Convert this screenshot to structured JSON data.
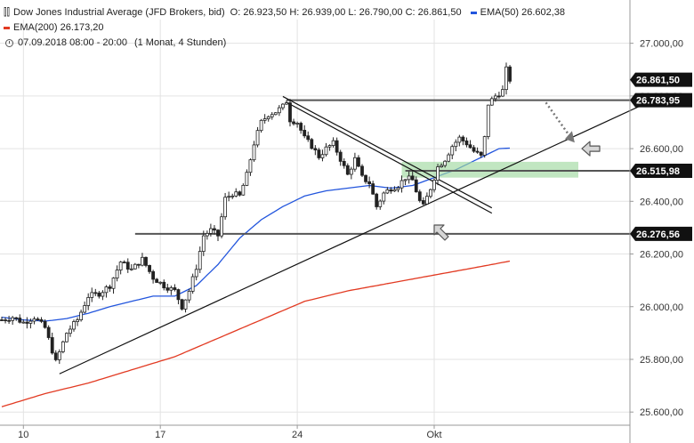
{
  "legend": {
    "instrument": "Dow Jones Industrial Average (JFD Brokers, bid)",
    "ohlc": "O: 26.923,50   H: 26.939,00   L: 26.790,00   C: 26.861,50",
    "ema50_label": "EMA(50)",
    "ema50_value": "26.602,38",
    "ema200_label": "EMA(200)",
    "ema200_value": "26.173,20",
    "date_range": "07.09.2018 08:00 - 20:00",
    "interval": "(1 Monat, 4 Stunden)"
  },
  "colors": {
    "candle": "#222222",
    "ema50": "#2255dd",
    "ema200": "#e23a22",
    "trendline": "#111111",
    "level_line": "#555555",
    "zone": "#9fd8a0",
    "price_tag_bg": "#111111",
    "price_tag_text": "#ffffff"
  },
  "chart_data": {
    "type": "candlestick",
    "ylim": [
      25550,
      27090
    ],
    "ytick_values": [
      25600,
      25800,
      26000,
      26200,
      26400,
      26600,
      26800,
      27000
    ],
    "ytick_labels": [
      "25.600,00",
      "25.800,00",
      "26.000,00",
      "26.200,00",
      "26.400,00",
      "26.600,00",
      "26.800,00",
      "27.000,00"
    ],
    "xtick_labels": [
      "10",
      "17",
      "24",
      "Okt"
    ],
    "xtick_bars": [
      6,
      44,
      82,
      120
    ],
    "bar_count": 142,
    "close_anchors": [
      [
        0,
        25950
      ],
      [
        3,
        25960
      ],
      [
        6,
        25940
      ],
      [
        9,
        25960
      ],
      [
        12,
        25920
      ],
      [
        15,
        25790
      ],
      [
        18,
        25900
      ],
      [
        21,
        25950
      ],
      [
        24,
        26040
      ],
      [
        27,
        26050
      ],
      [
        30,
        26080
      ],
      [
        33,
        26170
      ],
      [
        36,
        26140
      ],
      [
        39,
        26180
      ],
      [
        42,
        26110
      ],
      [
        45,
        26080
      ],
      [
        48,
        26060
      ],
      [
        50,
        26000
      ],
      [
        52,
        26060
      ],
      [
        54,
        26150
      ],
      [
        56,
        26270
      ],
      [
        58,
        26290
      ],
      [
        60,
        26270
      ],
      [
        62,
        26410
      ],
      [
        64,
        26430
      ],
      [
        66,
        26420
      ],
      [
        68,
        26500
      ],
      [
        70,
        26620
      ],
      [
        72,
        26700
      ],
      [
        74,
        26730
      ],
      [
        76,
        26740
      ],
      [
        78,
        26760
      ],
      [
        79,
        26780
      ],
      [
        80,
        26710
      ],
      [
        82,
        26700
      ],
      [
        84,
        26640
      ],
      [
        86,
        26610
      ],
      [
        88,
        26570
      ],
      [
        90,
        26600
      ],
      [
        92,
        26620
      ],
      [
        94,
        26560
      ],
      [
        96,
        26500
      ],
      [
        98,
        26560
      ],
      [
        100,
        26490
      ],
      [
        102,
        26470
      ],
      [
        104,
        26380
      ],
      [
        106,
        26430
      ],
      [
        108,
        26450
      ],
      [
        110,
        26460
      ],
      [
        112,
        26490
      ],
      [
        114,
        26480
      ],
      [
        116,
        26400
      ],
      [
        117,
        26380
      ],
      [
        119,
        26450
      ],
      [
        121,
        26530
      ],
      [
        123,
        26560
      ],
      [
        125,
        26610
      ],
      [
        127,
        26640
      ],
      [
        129,
        26620
      ],
      [
        131,
        26590
      ],
      [
        133,
        26570
      ],
      [
        134,
        26640
      ],
      [
        135,
        26770
      ],
      [
        137,
        26800
      ],
      [
        139,
        26820
      ],
      [
        140,
        26900
      ],
      [
        141,
        26862
      ]
    ],
    "ema50_anchors": [
      [
        0,
        25960
      ],
      [
        6,
        25950
      ],
      [
        12,
        25945
      ],
      [
        18,
        25955
      ],
      [
        24,
        25975
      ],
      [
        30,
        26000
      ],
      [
        36,
        26020
      ],
      [
        42,
        26040
      ],
      [
        48,
        26040
      ],
      [
        54,
        26080
      ],
      [
        60,
        26160
      ],
      [
        66,
        26260
      ],
      [
        72,
        26330
      ],
      [
        78,
        26380
      ],
      [
        84,
        26420
      ],
      [
        90,
        26440
      ],
      [
        96,
        26450
      ],
      [
        102,
        26460
      ],
      [
        108,
        26450
      ],
      [
        114,
        26460
      ],
      [
        120,
        26490
      ],
      [
        126,
        26520
      ],
      [
        132,
        26560
      ],
      [
        138,
        26600
      ],
      [
        141,
        26602
      ]
    ],
    "ema200_anchors": [
      [
        0,
        25620
      ],
      [
        12,
        25670
      ],
      [
        24,
        25710
      ],
      [
        36,
        25760
      ],
      [
        48,
        25810
      ],
      [
        60,
        25880
      ],
      [
        72,
        25950
      ],
      [
        84,
        26020
      ],
      [
        96,
        26060
      ],
      [
        108,
        26090
      ],
      [
        120,
        26120
      ],
      [
        132,
        26150
      ],
      [
        141,
        26173
      ]
    ],
    "horizontal_levels": [
      {
        "value": 26783.95,
        "label": "26.783,95",
        "bars": [
          79,
          180
        ]
      },
      {
        "value": 26515.98,
        "label": "26.515,98",
        "bars": [
          112,
          180
        ]
      },
      {
        "value": 26276.56,
        "label": "26.276,56",
        "bars": [
          37,
          180
        ]
      }
    ],
    "last_price": {
      "value": 26861.5,
      "label": "26.861,50"
    },
    "green_zone": {
      "bars": [
        111,
        160
      ],
      "range": [
        26490,
        26550
      ]
    },
    "trendlines": [
      {
        "from": [
          16,
          25745
        ],
        "to": [
          180,
          26780
        ]
      },
      {
        "from": [
          78,
          26798
        ],
        "to": [
          136,
          26375
        ]
      },
      {
        "from": [
          79,
          26776
        ],
        "to": [
          136,
          26355
        ]
      }
    ],
    "projection": {
      "from": [
        151,
        26775
      ],
      "to": [
        158,
        26640
      ]
    },
    "arrows": [
      {
        "at": [
          161,
          26600
        ],
        "dir": "left"
      },
      {
        "at": [
          120,
          26310
        ],
        "dir": "up-left"
      }
    ]
  }
}
